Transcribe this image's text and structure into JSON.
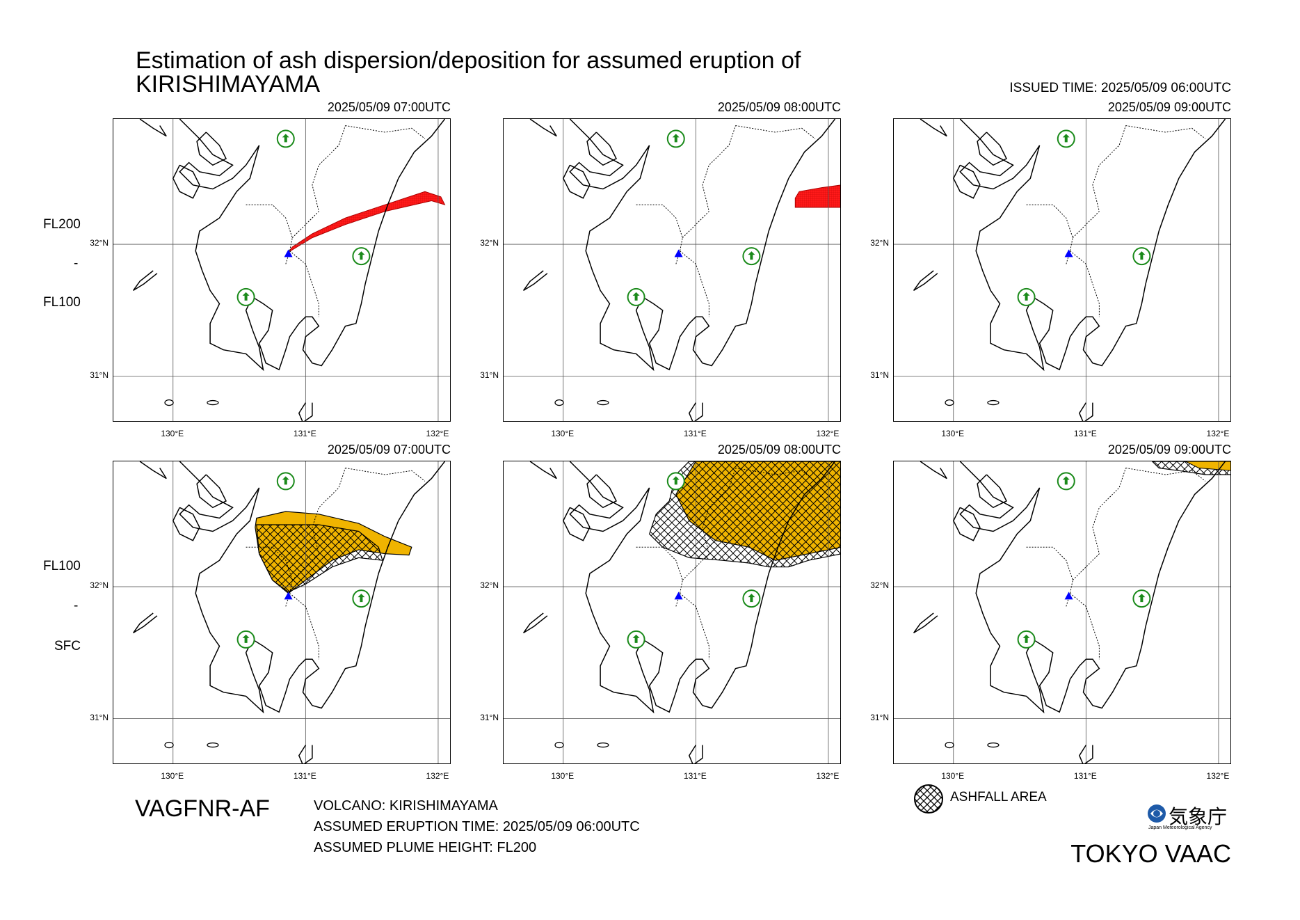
{
  "title": {
    "line1": "Estimation of ash dispersion/deposition for assumed eruption of",
    "line2": "KIRISHIMAYAMA"
  },
  "issued": "ISSUED TIME: 2025/05/09 06:00UTC",
  "rows": [
    {
      "upper_level": "FL200",
      "separator": "-",
      "lower_level": "FL100"
    },
    {
      "upper_level": "FL100",
      "separator": "-",
      "lower_level": "SFC"
    }
  ],
  "panels": [
    {
      "time": "2025/05/09 07:00UTC",
      "plume": "red-1",
      "ash": "none"
    },
    {
      "time": "2025/05/09 08:00UTC",
      "plume": "red-2",
      "ash": "none"
    },
    {
      "time": "2025/05/09 09:00UTC",
      "plume": "none",
      "ash": "none"
    },
    {
      "time": "2025/05/09 07:00UTC",
      "plume": "none",
      "ash": "ash-1"
    },
    {
      "time": "2025/05/09 08:00UTC",
      "plume": "none",
      "ash": "ash-2"
    },
    {
      "time": "2025/05/09 09:00UTC",
      "plume": "none",
      "ash": "ash-3"
    }
  ],
  "axes": {
    "lat_labels": [
      "32°N",
      "31°N"
    ],
    "lon_labels": [
      "130°E",
      "131°E",
      "132°E"
    ]
  },
  "product_code": "VAGFNR-AF",
  "info": {
    "volcano": "VOLCANO: KIRISHIMAYAMA",
    "eruption_time": "ASSUMED ERUPTION TIME: 2025/05/09 06:00UTC",
    "plume_height": "ASSUMED PLUME HEIGHT: FL200"
  },
  "legend": {
    "ashfall": "ASHFALL AREA"
  },
  "agency": {
    "name_jp": "気象庁",
    "name_en": "Japan Meteorological Agency"
  },
  "vaac": "TOKYO VAAC",
  "colors": {
    "plume": "#ff1a1a",
    "ashfall": "#f0b400",
    "volcano": "#0000ff",
    "city": "#1a8a1a"
  }
}
